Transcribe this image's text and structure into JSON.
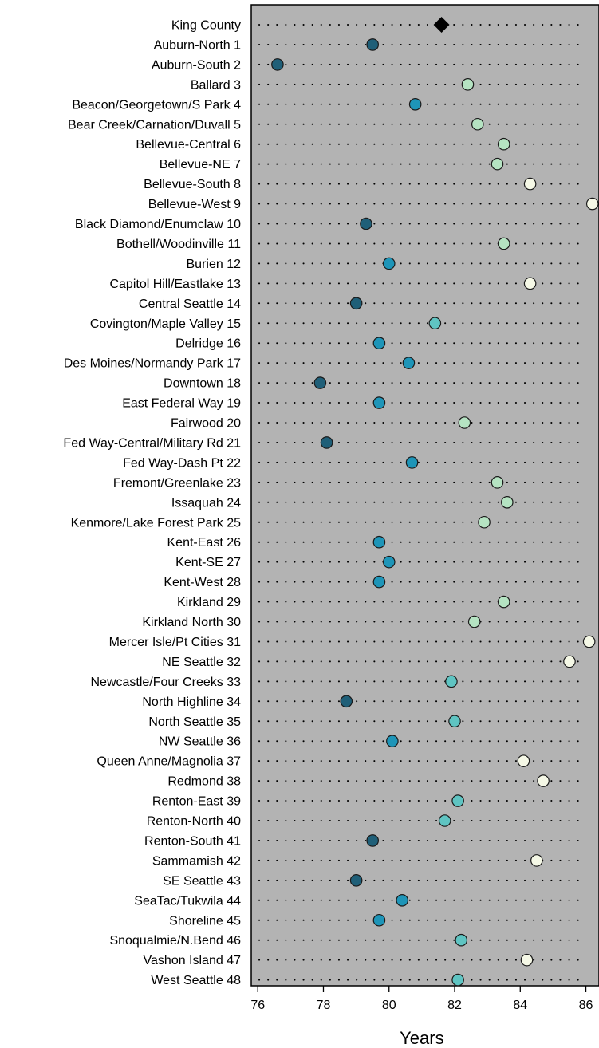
{
  "chart_data": {
    "type": "dot",
    "xlabel": "Years",
    "xlim": [
      75.8,
      86.4
    ],
    "xticks": [
      76,
      78,
      80,
      82,
      84,
      86
    ],
    "grid": "dotted horizontal guides per row",
    "background_color": "#b3b3b3",
    "reference": {
      "label": "King County",
      "value": 81.6,
      "marker": "diamond",
      "color": "#000000"
    },
    "color_scale": [
      "#1f5f78",
      "#1e95b8",
      "#5fc4c2",
      "#b5e3c2",
      "#f5f8e6"
    ],
    "categories": [
      "Auburn-North 1",
      "Auburn-South 2",
      "Ballard 3",
      "Beacon/Georgetown/S Park 4",
      "Bear Creek/Carnation/Duvall 5",
      "Bellevue-Central 6",
      "Bellevue-NE 7",
      "Bellevue-South 8",
      "Bellevue-West 9",
      "Black Diamond/Enumclaw 10",
      "Bothell/Woodinville 11",
      "Burien 12",
      "Capitol Hill/Eastlake 13",
      "Central Seattle 14",
      "Covington/Maple Valley 15",
      "Delridge 16",
      "Des Moines/Normandy Park 17",
      "Downtown 18",
      "East Federal Way 19",
      "Fairwood 20",
      "Fed Way-Central/Military Rd 21",
      "Fed Way-Dash Pt 22",
      "Fremont/Greenlake 23",
      "Issaquah 24",
      "Kenmore/Lake Forest Park 25",
      "Kent-East 26",
      "Kent-SE 27",
      "Kent-West 28",
      "Kirkland 29",
      "Kirkland North 30",
      "Mercer Isle/Pt Cities 31",
      "NE Seattle 32",
      "Newcastle/Four Creeks 33",
      "North Highline 34",
      "North Seattle 35",
      "NW Seattle 36",
      "Queen Anne/Magnolia 37",
      "Redmond 38",
      "Renton-East 39",
      "Renton-North 40",
      "Renton-South 41",
      "Sammamish 42",
      "SE Seattle 43",
      "SeaTac/Tukwila 44",
      "Shoreline 45",
      "Snoqualmie/N.Bend 46",
      "Vashon Island 47",
      "West Seattle 48"
    ],
    "values": [
      79.5,
      76.6,
      82.4,
      80.8,
      82.7,
      83.5,
      83.3,
      84.3,
      86.2,
      79.3,
      83.5,
      80.0,
      84.3,
      79.0,
      81.4,
      79.7,
      80.6,
      77.9,
      79.7,
      82.3,
      78.1,
      80.7,
      83.3,
      83.6,
      82.9,
      79.7,
      80.0,
      79.7,
      83.5,
      82.6,
      86.1,
      85.5,
      81.9,
      78.7,
      82.0,
      80.1,
      84.1,
      84.7,
      82.1,
      81.7,
      79.5,
      84.5,
      79.0,
      80.4,
      79.7,
      82.2,
      84.2,
      82.1
    ]
  }
}
